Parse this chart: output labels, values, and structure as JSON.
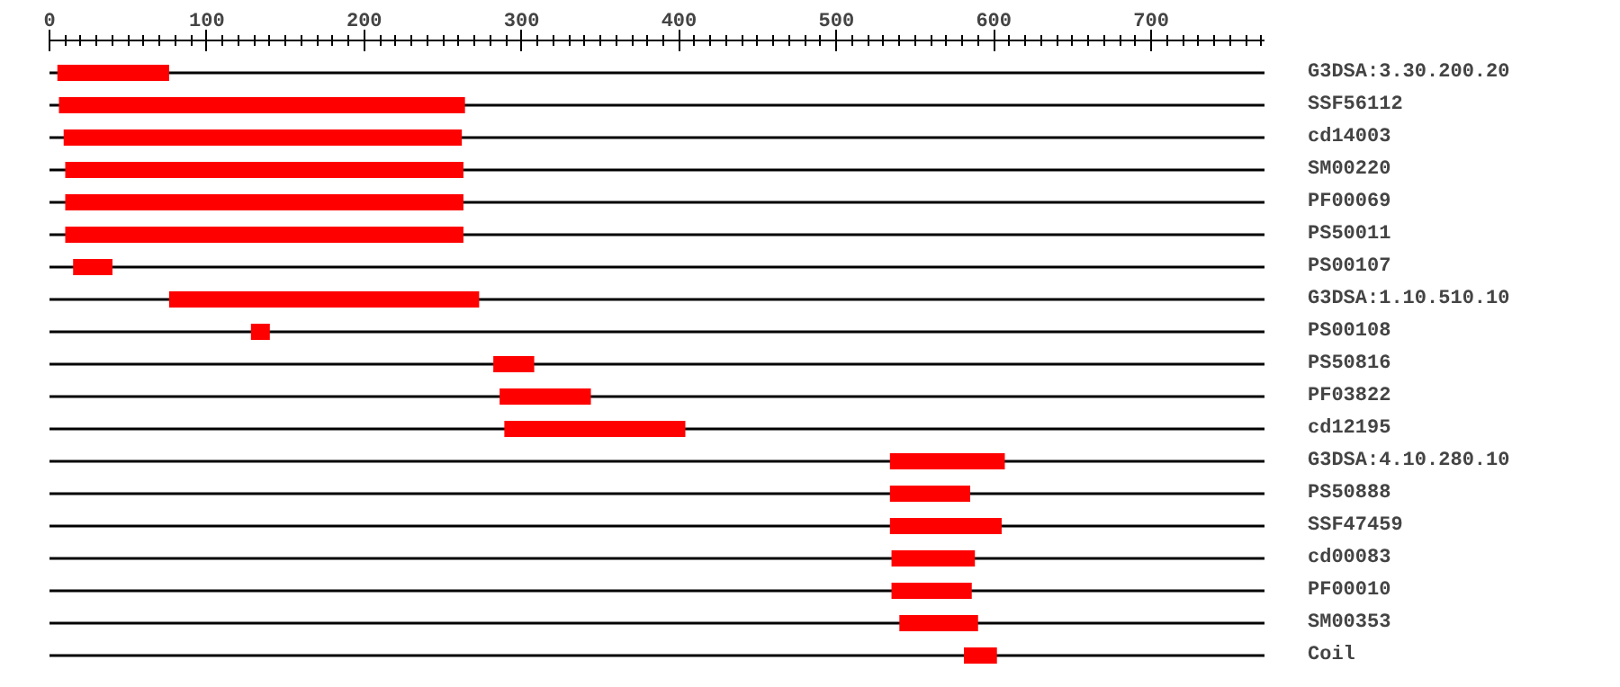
{
  "chart_data": {
    "type": "bar",
    "orientation": "horizontal",
    "categories": [
      "G3DSA:3.30.200.20",
      "SSF56112",
      "cd14003",
      "SM00220",
      "PF00069",
      "PS50011",
      "PS00107",
      "G3DSA:1.10.510.10",
      "PS00108",
      "PS50816",
      "PF03822",
      "cd12195",
      "G3DSA:4.10.280.10",
      "PS50888",
      "SSF47459",
      "cd00083",
      "PF00010",
      "SM00353",
      "Coil"
    ],
    "base": [
      5,
      6,
      9,
      10,
      10,
      10,
      15,
      76,
      128,
      282,
      286,
      289,
      534,
      534,
      534,
      535,
      535,
      540,
      581
    ],
    "values": [
      71,
      258,
      253,
      253,
      253,
      253,
      25,
      197,
      12,
      26,
      58,
      115,
      73,
      51,
      71,
      53,
      51,
      50,
      21
    ],
    "color": "#ff0000",
    "xlim": [
      0,
      772
    ],
    "xticks": [
      0,
      {
        "value": 10,
        "label": null
      },
      {
        "value": 20,
        "label": null
      },
      {
        "value": 30,
        "label": null
      },
      {
        "value": 40,
        "label": null
      },
      {
        "value": 50,
        "label": null
      },
      {
        "value": 60,
        "label": null
      },
      {
        "value": 70,
        "label": null
      },
      {
        "value": 80,
        "label": null
      },
      {
        "value": 90,
        "label": null
      },
      100,
      {
        "value": 110,
        "label": null
      },
      {
        "value": 120,
        "label": null
      },
      {
        "value": 130,
        "label": null
      },
      {
        "value": 140,
        "label": null
      },
      {
        "value": 150,
        "label": null
      },
      {
        "value": 160,
        "label": null
      },
      {
        "value": 170,
        "label": null
      },
      {
        "value": 180,
        "label": null
      },
      {
        "value": 190,
        "label": null
      },
      200,
      {
        "value": 210,
        "label": null
      },
      {
        "value": 220,
        "label": null
      },
      {
        "value": 230,
        "label": null
      },
      {
        "value": 240,
        "label": null
      },
      {
        "value": 250,
        "label": null
      },
      {
        "value": 260,
        "label": null
      },
      {
        "value": 270,
        "label": null
      },
      {
        "value": 280,
        "label": null
      },
      {
        "value": 290,
        "label": null
      },
      300,
      {
        "value": 310,
        "label": null
      },
      {
        "value": 320,
        "label": null
      },
      {
        "value": 330,
        "label": null
      },
      {
        "value": 340,
        "label": null
      },
      {
        "value": 350,
        "label": null
      },
      {
        "value": 360,
        "label": null
      },
      {
        "value": 370,
        "label": null
      },
      {
        "value": 380,
        "label": null
      },
      {
        "value": 390,
        "label": null
      },
      400,
      {
        "value": 410,
        "label": null
      },
      {
        "value": 420,
        "label": null
      },
      {
        "value": 430,
        "label": null
      },
      {
        "value": 440,
        "label": null
      },
      {
        "value": 450,
        "label": null
      },
      {
        "value": 460,
        "label": null
      },
      {
        "value": 470,
        "label": null
      },
      {
        "value": 480,
        "label": null
      },
      {
        "value": 490,
        "label": null
      },
      500,
      {
        "value": 510,
        "label": null
      },
      {
        "value": 520,
        "label": null
      },
      {
        "value": 530,
        "label": null
      },
      {
        "value": 540,
        "label": null
      },
      {
        "value": 550,
        "label": null
      },
      {
        "value": 560,
        "label": null
      },
      {
        "value": 570,
        "label": null
      },
      {
        "value": 580,
        "label": null
      },
      {
        "value": 590,
        "label": null
      },
      600,
      {
        "value": 610,
        "label": null
      },
      {
        "value": 620,
        "label": null
      },
      {
        "value": 630,
        "label": null
      },
      {
        "value": 640,
        "label": null
      },
      {
        "value": 650,
        "label": null
      },
      {
        "value": 660,
        "label": null
      },
      {
        "value": 670,
        "label": null
      },
      {
        "value": 680,
        "label": null
      },
      {
        "value": 690,
        "label": null
      },
      700,
      {
        "value": 710,
        "label": null
      },
      {
        "value": 720,
        "label": null
      },
      {
        "value": 730,
        "label": null
      },
      {
        "value": 740,
        "label": null
      },
      {
        "value": 750,
        "label": null
      },
      {
        "value": 760,
        "label": null
      },
      {
        "value": 770,
        "label": null
      }
    ],
    "grid": "y"
  }
}
